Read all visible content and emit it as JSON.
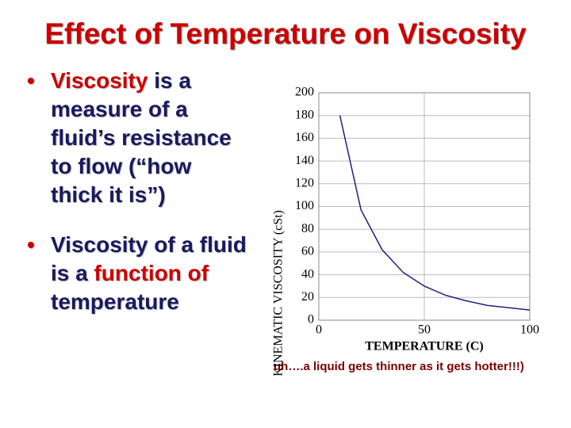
{
  "title": "Effect of Temperature on Viscosity",
  "bullets": [
    {
      "parts": [
        {
          "text": "Viscosity",
          "emphasis": true
        },
        {
          "text": " is a measure of a fluid’s resistance to flow (“how thick it is”)",
          "emphasis": false
        }
      ]
    },
    {
      "parts": [
        {
          "text": "Viscosity of a fluid is a ",
          "emphasis": false
        },
        {
          "text": "function of",
          "emphasis": true
        },
        {
          "text": " temperature",
          "emphasis": false
        }
      ]
    }
  ],
  "caption": "uh….a liquid gets thinner as it gets hotter!!!)",
  "chart_data": {
    "type": "line",
    "x_label": "TEMPERATURE (C)",
    "y_label": "KINEMATIC VISCOSITY (cSt)",
    "x": [
      10,
      20,
      30,
      40,
      50,
      60,
      70,
      80,
      90,
      100
    ],
    "series": [
      {
        "color": "#1a237e",
        "values": [
          180,
          97,
          62,
          42,
          30,
          22,
          17,
          13,
          11,
          9
        ]
      }
    ],
    "xlim": [
      0,
      100
    ],
    "xticks": [
      0,
      50,
      100
    ],
    "ylim": [
      0,
      200
    ],
    "yticks": [
      0,
      20,
      40,
      60,
      80,
      100,
      120,
      140,
      160,
      180,
      200
    ],
    "grid": true
  }
}
